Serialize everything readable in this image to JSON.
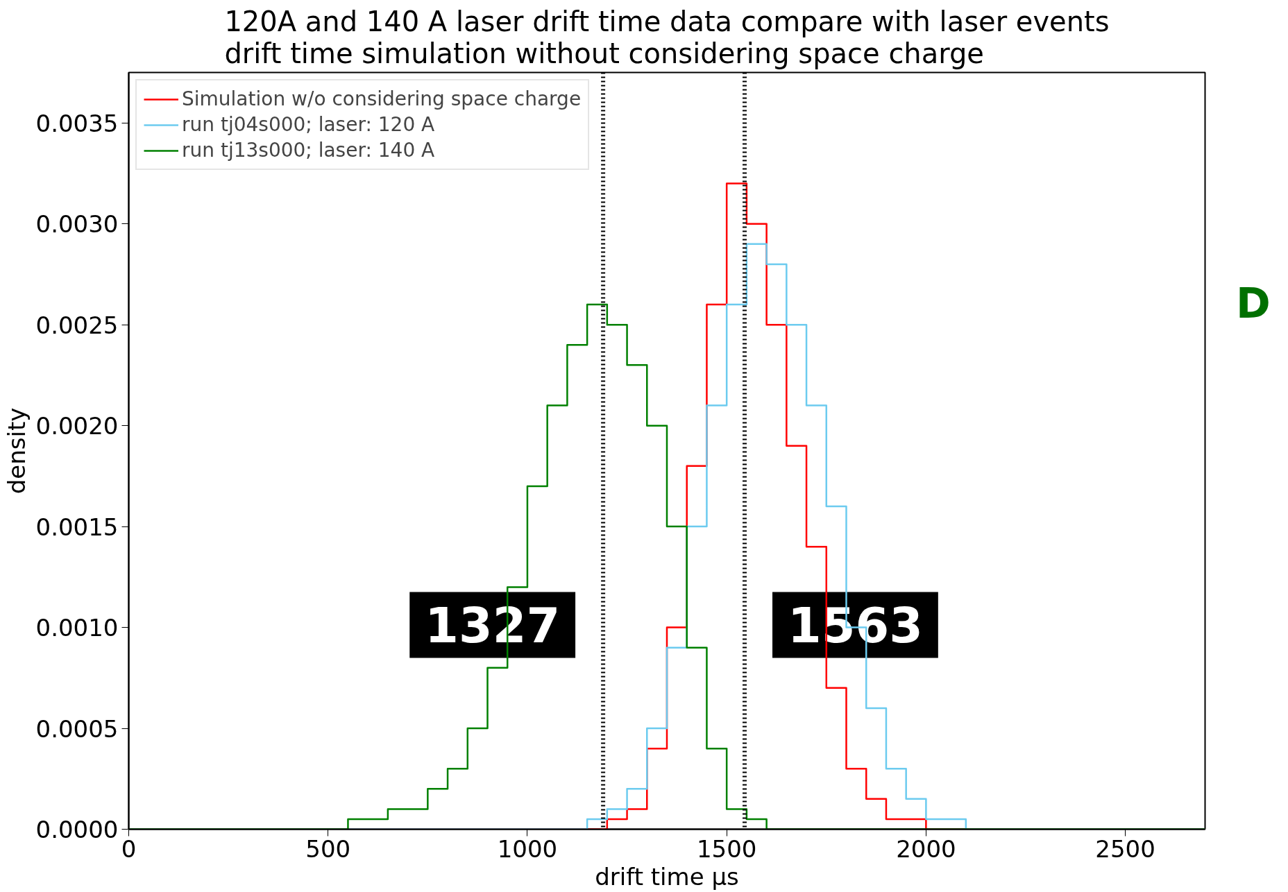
{
  "chart_data": {
    "type": "histogram",
    "title": "120A and 140 A laser drift time data compare with laser events\ndrift time simulation without considering space charge",
    "xlabel": "drift time µs",
    "ylabel": "density",
    "bins": [
      0,
      50,
      100,
      150,
      200,
      250,
      300,
      350,
      400,
      450,
      500,
      550,
      600,
      650,
      700,
      750,
      800,
      850,
      900,
      950,
      1000,
      1050,
      1100,
      1150,
      1200,
      1250,
      1300,
      1350,
      1400,
      1450,
      1500,
      1550,
      1600,
      1650,
      1700,
      1750,
      1800,
      1850,
      1900,
      1950,
      2000,
      2050,
      2100,
      2150,
      2200,
      2250,
      2300,
      2350,
      2400,
      2450,
      2500,
      2550,
      2600,
      2650,
      2700
    ],
    "series": [
      {
        "name": "Simulation w/o considering space charge",
        "color": "#ff0000",
        "values": [
          0,
          0,
          0,
          0,
          0,
          0,
          0,
          0,
          0,
          0,
          0,
          0,
          0,
          0,
          0,
          0,
          0,
          0,
          0,
          0,
          0,
          0,
          0,
          0,
          5e-05,
          0.0001,
          0.0004,
          0.001,
          0.0018,
          0.0026,
          0.0032,
          0.003,
          0.0025,
          0.0019,
          0.0014,
          0.0007,
          0.0003,
          0.00015,
          5e-05,
          5e-05,
          0,
          0,
          0,
          0,
          0,
          0,
          0,
          0,
          0,
          0,
          0,
          0,
          0,
          0
        ]
      },
      {
        "name": "run tj04s000; laser: 120 A",
        "color": "#6ccbef",
        "values": [
          0,
          0,
          0,
          0,
          0,
          0,
          0,
          0,
          0,
          0,
          0,
          0,
          0,
          0,
          0,
          0,
          0,
          0,
          0,
          0,
          0,
          0,
          0,
          5e-05,
          0.0001,
          0.0002,
          0.0005,
          0.0009,
          0.0015,
          0.0021,
          0.0026,
          0.0029,
          0.0028,
          0.0025,
          0.0021,
          0.0016,
          0.001,
          0.0006,
          0.0003,
          0.00015,
          5e-05,
          5e-05,
          0,
          0,
          0,
          0,
          0,
          0,
          0,
          0,
          0,
          0,
          0,
          0
        ]
      },
      {
        "name": "run tj13s000; laser: 140 A",
        "color": "#008000",
        "values": [
          0,
          0,
          0,
          0,
          0,
          0,
          0,
          0,
          0,
          0,
          0,
          5e-05,
          5e-05,
          0.0001,
          0.0001,
          0.0002,
          0.0003,
          0.0005,
          0.0008,
          0.0012,
          0.0017,
          0.0021,
          0.0024,
          0.0026,
          0.0025,
          0.0023,
          0.002,
          0.0015,
          0.0009,
          0.0004,
          0.0001,
          5e-05,
          0,
          0,
          0,
          0,
          0,
          0,
          0,
          0,
          0,
          0,
          0,
          0,
          0,
          0,
          0,
          0,
          0,
          0,
          0,
          0,
          0,
          0
        ]
      }
    ],
    "xlim": [
      0,
      2700
    ],
    "xticks": [
      0,
      500,
      1000,
      1500,
      2000,
      2500
    ],
    "ylim": [
      0,
      0.00375
    ],
    "yticks": [
      {
        "value": 0,
        "label": "0.0000"
      },
      {
        "value": 0.0005,
        "label": "0.0005"
      },
      {
        "value": 0.001,
        "label": "0.0010"
      },
      {
        "value": 0.0015,
        "label": "0.0015"
      },
      {
        "value": 0.002,
        "label": "0.0020"
      },
      {
        "value": 0.0025,
        "label": "0.0025"
      },
      {
        "value": 0.003,
        "label": "0.0030"
      },
      {
        "value": 0.0035,
        "label": "0.0035"
      }
    ],
    "ref_lines": [
      {
        "axis": "x",
        "value": 1190,
        "color": "#000000",
        "line_style": "dotted"
      },
      {
        "axis": "x",
        "value": 1545,
        "color": "#000000",
        "line_style": "dotted"
      }
    ],
    "annotations": [
      "1327",
      "1563",
      "D"
    ],
    "grid": false,
    "legend": "top left"
  }
}
